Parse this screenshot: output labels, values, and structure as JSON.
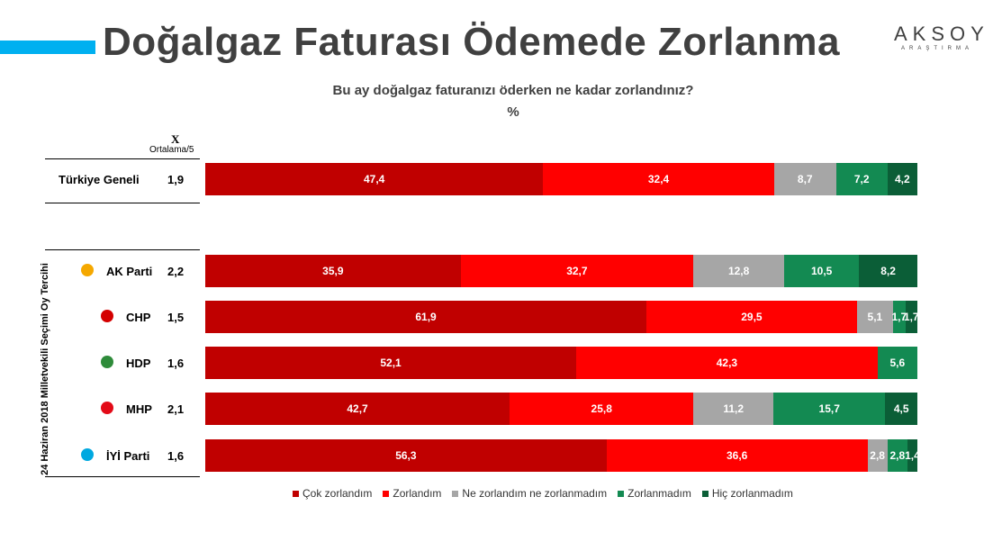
{
  "title": "Doğalgaz Faturası Ödemede Zorlanma",
  "logo": {
    "name": "AKSOY",
    "sub": "ARAŞTIRMA"
  },
  "chart_data": {
    "type": "bar",
    "orientation": "horizontal",
    "stacked": true,
    "title": "Bu ay doğalgaz faturanızı öderken ne kadar zorlandınız?",
    "unit": "%",
    "avg_header_symbol": "X",
    "avg_header": "Ortalama/5",
    "group_label": "24 Haziran 2018 Milletvekili Seçimi Oy Tercihi",
    "legend_position": "bottom",
    "series": [
      {
        "name": "Çok zorlandım",
        "color": "#c00000"
      },
      {
        "name": "Zorlandım",
        "color": "#ff0000"
      },
      {
        "name": "Ne zorlandım ne zorlanmadım",
        "color": "#a6a6a6"
      },
      {
        "name": "Zorlanmadım",
        "color": "#138a52"
      },
      {
        "name": "Hiç zorlanmadım",
        "color": "#0b5e37"
      }
    ],
    "rows": [
      {
        "label": "Türkiye Geneli",
        "avg": "1,9",
        "values": [
          47.4,
          32.4,
          8.7,
          7.2,
          4.2
        ],
        "labels": [
          "47,4",
          "32,4",
          "8,7",
          "7,2",
          "4,2"
        ]
      },
      {
        "label": "AK Parti",
        "avg": "2,2",
        "values": [
          35.9,
          32.7,
          12.8,
          10.5,
          8.2
        ],
        "labels": [
          "35,9",
          "32,7",
          "12,8",
          "10,5",
          "8,2"
        ],
        "logo": "ak-parti"
      },
      {
        "label": "CHP",
        "avg": "1,5",
        "values": [
          61.9,
          29.5,
          5.1,
          1.7,
          1.7
        ],
        "labels": [
          "61,9",
          "29,5",
          "5,1",
          "1,7",
          "1,7"
        ],
        "logo": "chp"
      },
      {
        "label": "HDP",
        "avg": "1,6",
        "values": [
          52.1,
          42.3,
          0,
          5.6,
          0
        ],
        "labels": [
          "52,1",
          "42,3",
          "",
          "5,6",
          ""
        ],
        "logo": "hdp"
      },
      {
        "label": "MHP",
        "avg": "2,1",
        "values": [
          42.7,
          25.8,
          11.2,
          15.7,
          4.5
        ],
        "labels": [
          "42,7",
          "25,8",
          "11,2",
          "15,7",
          "4,5"
        ],
        "logo": "mhp"
      },
      {
        "label": "İYİ Parti",
        "avg": "1,6",
        "values": [
          56.3,
          36.6,
          2.8,
          2.8,
          1.4
        ],
        "labels": [
          "56,3",
          "36,6",
          "2,8",
          "2,8",
          "1,4"
        ],
        "logo": "iyi"
      }
    ]
  }
}
